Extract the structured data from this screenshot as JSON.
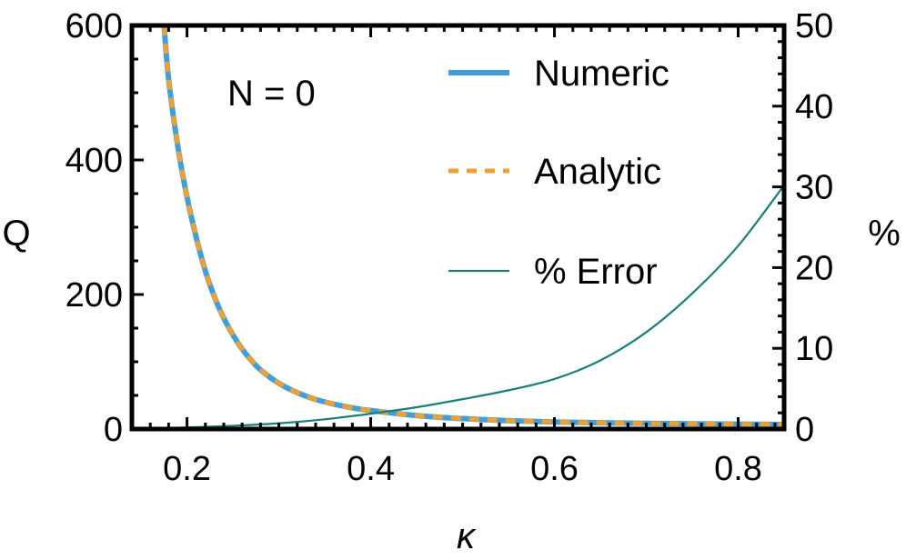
{
  "chart_data": {
    "type": "line",
    "annotation": "N = 0",
    "xlabel": "κ",
    "ylabel_left": "Q",
    "ylabel_right": "%",
    "xlim": [
      0.14,
      0.85
    ],
    "ylim_left": [
      0,
      600
    ],
    "ylim_right": [
      0,
      50
    ],
    "x_ticks": [
      0.2,
      0.4,
      0.6,
      0.8
    ],
    "x_tick_labels": [
      "0.2",
      "0.4",
      "0.6",
      "0.8"
    ],
    "y_left_ticks": [
      0,
      200,
      400,
      600
    ],
    "y_left_tick_labels": [
      "0",
      "200",
      "400",
      "600"
    ],
    "y_right_ticks": [
      0,
      10,
      20,
      30,
      40,
      50
    ],
    "y_right_tick_labels": [
      "0",
      "10",
      "20",
      "30",
      "40",
      "50"
    ],
    "grid": false,
    "legend_position": "top-right",
    "series": [
      {
        "name": "Numeric",
        "axis": "left",
        "color": "#3f9fdc",
        "style": "solid-thick",
        "x": [
          0.175,
          0.18,
          0.19,
          0.2,
          0.21,
          0.22,
          0.23,
          0.24,
          0.25,
          0.26,
          0.27,
          0.28,
          0.3,
          0.32,
          0.34,
          0.36,
          0.38,
          0.4,
          0.45,
          0.5,
          0.55,
          0.6,
          0.65,
          0.7,
          0.75,
          0.8,
          0.85
        ],
        "values": [
          600,
          520,
          420,
          345,
          285,
          235,
          196,
          165,
          140,
          119,
          102,
          88,
          68,
          54,
          44,
          37,
          31.5,
          27.5,
          20,
          15.5,
          12.5,
          10.5,
          9.3,
          8.4,
          7.7,
          7.2,
          6.8
        ]
      },
      {
        "name": "Analytic",
        "axis": "left",
        "color": "#f0a030",
        "style": "dashed",
        "x": [
          0.175,
          0.18,
          0.19,
          0.2,
          0.21,
          0.22,
          0.23,
          0.24,
          0.25,
          0.26,
          0.27,
          0.28,
          0.3,
          0.32,
          0.34,
          0.36,
          0.38,
          0.4,
          0.45,
          0.5,
          0.55,
          0.6,
          0.65,
          0.7,
          0.75,
          0.8,
          0.85
        ],
        "values": [
          600,
          520,
          420,
          345,
          285,
          235,
          196,
          165,
          140,
          119,
          102,
          88,
          68,
          54,
          44,
          37,
          31.5,
          27.5,
          20,
          15.5,
          12.5,
          10.5,
          9.3,
          8.4,
          7.7,
          7.2,
          6.8
        ]
      },
      {
        "name": "% Error",
        "axis": "right",
        "color": "#1a7f7a",
        "style": "solid-thin",
        "x": [
          0.15,
          0.2,
          0.25,
          0.3,
          0.35,
          0.4,
          0.45,
          0.5,
          0.55,
          0.6,
          0.65,
          0.7,
          0.75,
          0.8,
          0.85
        ],
        "values": [
          0.0,
          0.2,
          0.4,
          0.7,
          1.2,
          1.9,
          2.7,
          3.7,
          4.8,
          6.2,
          8.5,
          12.0,
          16.8,
          22.7,
          30.2
        ]
      }
    ]
  }
}
